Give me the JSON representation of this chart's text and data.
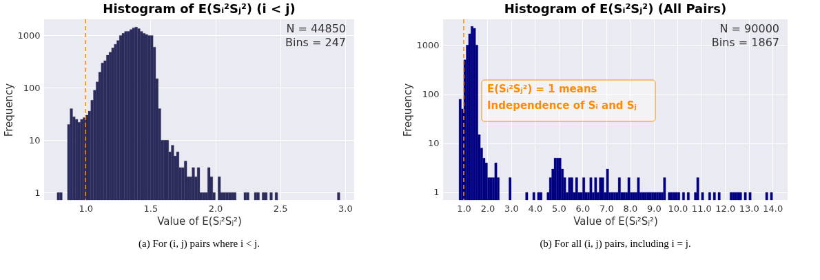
{
  "chart_data": [
    {
      "type": "histogram",
      "title": "Histogram of E(Sᵢ²Sⱼ²) (i < j)",
      "xlabel": "Value of E(Sᵢ²Sⱼ²)",
      "ylabel": "Frequency",
      "color": "#2b2b5c",
      "bins": [
        0.78,
        0.8,
        0.82,
        0.84,
        0.86,
        0.88,
        0.9,
        0.92,
        0.94,
        0.96,
        0.98,
        1.0,
        1.02,
        1.04,
        1.06,
        1.08,
        1.1,
        1.12,
        1.14,
        1.16,
        1.18,
        1.2,
        1.22,
        1.24,
        1.26,
        1.28,
        1.3,
        1.32,
        1.34,
        1.36,
        1.38,
        1.4,
        1.42,
        1.44,
        1.46,
        1.48,
        1.5,
        1.52,
        1.54,
        1.56,
        1.58,
        1.6,
        1.62,
        1.64,
        1.66,
        1.68,
        1.7,
        1.72,
        1.74,
        1.76,
        1.78,
        1.8,
        1.82,
        1.84,
        1.86,
        1.88,
        1.9,
        1.92,
        1.94,
        1.96,
        1.98,
        2.0,
        2.02,
        2.04,
        2.06,
        2.08,
        2.1,
        2.12,
        2.14,
        2.16,
        2.18,
        2.2,
        2.22,
        2.24,
        2.26,
        2.28,
        2.3,
        2.32,
        2.34,
        2.36,
        2.38,
        2.4,
        2.42,
        2.44,
        2.46,
        2.48,
        2.5,
        2.52,
        2.54,
        2.56,
        2.58,
        2.6,
        2.62,
        2.64,
        2.66,
        2.68,
        2.7,
        2.72,
        2.74,
        2.76,
        2.78,
        2.8,
        2.82,
        2.84,
        2.86,
        2.88,
        2.9,
        2.92,
        2.94,
        2.96,
        2.98
      ],
      "values": [
        1,
        1,
        null,
        null,
        20,
        40,
        28,
        25,
        22,
        25,
        27,
        30,
        36,
        58,
        90,
        130,
        200,
        300,
        330,
        420,
        480,
        580,
        680,
        800,
        1000,
        1100,
        1200,
        1200,
        1300,
        1400,
        1450,
        1350,
        1200,
        1100,
        1050,
        1000,
        1000,
        600,
        150,
        40,
        10,
        10,
        10,
        6,
        8,
        5,
        6,
        3,
        3,
        4,
        2,
        2,
        3,
        2,
        3,
        1,
        1,
        1,
        3,
        2,
        1,
        null,
        2,
        1,
        1,
        1,
        1,
        1,
        1,
        null,
        null,
        null,
        1,
        1,
        null,
        null,
        1,
        1,
        null,
        1,
        1,
        null,
        1,
        null,
        1,
        null,
        null,
        null,
        null,
        null,
        null,
        null,
        null,
        null,
        null,
        null,
        null,
        null,
        null,
        null,
        null,
        null,
        null,
        null,
        null,
        null,
        null,
        null,
        1,
        null
      ],
      "xlim": [
        0.68,
        3.07
      ],
      "ylim": [
        0.72,
        2040
      ],
      "xticks": [
        {
          "value": 1,
          "label": "1.0"
        },
        {
          "value": 1.5,
          "label": "1.5"
        },
        {
          "value": 2,
          "label": "2.0"
        },
        {
          "value": 2.5,
          "label": "2.5"
        },
        {
          "value": 3,
          "label": "3.0"
        }
      ],
      "yticks": [
        1,
        10,
        100,
        1000
      ],
      "log": "y",
      "grid": true,
      "ref_lines": [
        {
          "axis": "x",
          "value": 1,
          "color": "#ff8c00",
          "line_style": "dashed"
        }
      ],
      "annotations": [
        "N = 44850\nBins = 247",
        "(a) For (i, j) pairs where i < j."
      ]
    },
    {
      "type": "histogram",
      "title": "Histogram of E(Sᵢ²Sⱼ²) (All Pairs)",
      "xlabel": "Value of E(Sᵢ²Sⱼ²)",
      "ylabel": "Frequency",
      "color": "#000080",
      "bins": [
        0.8,
        0.9,
        1.0,
        1.1,
        1.2,
        1.3,
        1.4,
        1.5,
        1.6,
        1.7,
        1.8,
        1.9,
        2.0,
        2.1,
        2.2,
        2.3,
        2.4,
        2.5,
        2.6,
        2.7,
        2.8,
        2.9,
        3.0,
        3.1,
        3.2,
        3.3,
        3.4,
        3.5,
        3.6,
        3.7,
        3.8,
        3.9,
        4.0,
        4.1,
        4.2,
        4.3,
        4.4,
        4.5,
        4.6,
        4.7,
        4.8,
        4.9,
        5.0,
        5.1,
        5.2,
        5.3,
        5.4,
        5.5,
        5.6,
        5.7,
        5.8,
        5.9,
        6.0,
        6.1,
        6.2,
        6.3,
        6.4,
        6.5,
        6.6,
        6.7,
        6.8,
        6.9,
        7.0,
        7.1,
        7.2,
        7.3,
        7.4,
        7.5,
        7.6,
        7.7,
        7.8,
        7.9,
        8.0,
        8.1,
        8.2,
        8.3,
        8.4,
        8.5,
        8.6,
        8.7,
        8.8,
        8.9,
        9.0,
        9.1,
        9.2,
        9.3,
        9.4,
        9.5,
        9.6,
        9.7,
        9.8,
        9.9,
        10.0,
        10.1,
        10.2,
        10.3,
        10.4,
        10.5,
        10.6,
        10.7,
        10.8,
        10.9,
        11.0,
        11.1,
        11.2,
        11.3,
        11.4,
        11.5,
        11.6,
        11.7,
        11.8,
        11.9,
        12.0,
        12.1,
        12.2,
        12.3,
        12.4,
        12.5,
        12.6,
        12.7,
        12.8,
        12.9,
        13.0,
        13.1,
        13.2,
        13.3,
        13.4,
        13.5,
        13.6,
        13.7,
        13.8,
        13.9,
        14.0
      ],
      "values": [
        79,
        50,
        500,
        1000,
        1700,
        2400,
        2200,
        1000,
        15,
        8,
        5,
        4,
        2,
        2,
        2,
        4,
        2,
        null,
        null,
        null,
        null,
        2,
        null,
        null,
        null,
        null,
        null,
        null,
        1,
        null,
        null,
        1,
        null,
        1,
        1,
        null,
        null,
        1,
        2,
        3,
        5,
        5,
        5,
        3,
        2,
        1,
        2,
        2,
        1,
        2,
        1,
        1,
        2,
        1,
        1,
        2,
        1,
        2,
        1,
        2,
        2,
        1,
        3,
        1,
        1,
        1,
        1,
        2,
        1,
        1,
        1,
        2,
        1,
        1,
        1,
        2,
        1,
        1,
        1,
        1,
        1,
        1,
        1,
        1,
        1,
        1,
        2,
        null,
        1,
        1,
        1,
        1,
        1,
        null,
        1,
        null,
        1,
        null,
        null,
        1,
        2,
        null,
        1,
        null,
        null,
        1,
        null,
        1,
        null,
        1,
        null,
        null,
        null,
        null,
        1,
        1,
        1,
        1,
        1,
        null,
        1,
        null,
        1,
        null,
        null,
        null,
        null,
        null,
        null,
        1,
        null,
        1
      ],
      "xlim": [
        0.13,
        14.63
      ],
      "ylim": [
        0.7,
        3340
      ],
      "xticks": [
        {
          "value": 1,
          "label": "1.0"
        },
        {
          "value": 2,
          "label": "2.0"
        },
        {
          "value": 3,
          "label": "3.0"
        },
        {
          "value": 4,
          "label": "4.0"
        },
        {
          "value": 5,
          "label": "5.0"
        },
        {
          "value": 6,
          "label": "6.0"
        },
        {
          "value": 7,
          "label": "7.0"
        },
        {
          "value": 8,
          "label": "8.0"
        },
        {
          "value": 9,
          "label": "9.0"
        },
        {
          "value": 10,
          "label": "10.0"
        },
        {
          "value": 11,
          "label": "11.0"
        },
        {
          "value": 12,
          "label": "12.0"
        },
        {
          "value": 13,
          "label": "13.0"
        },
        {
          "value": 14,
          "label": "14.0"
        }
      ],
      "yticks": [
        1,
        10,
        100,
        1000
      ],
      "log": "y",
      "grid": true,
      "ref_lines": [
        {
          "axis": "x",
          "value": 1,
          "color": "#ff8c00",
          "line_style": "dashed"
        }
      ],
      "annotations": [
        "N = 90000\nBins = 1867",
        "E(Sᵢ²Sⱼ²) = 1 means\nIndependence of Sᵢ and Sⱼ",
        "(b) For all (i, j) pairs, including i = j."
      ]
    }
  ]
}
